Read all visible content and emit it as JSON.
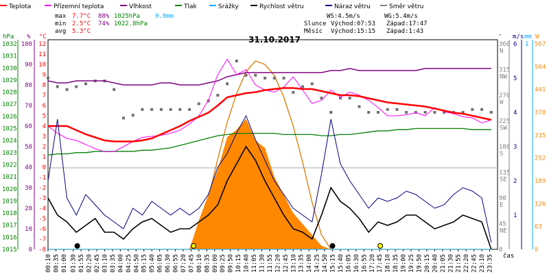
{
  "legend": [
    {
      "label": "Teplota",
      "color": "#ff0000"
    },
    {
      "label": "Přízemní teplota",
      "color": "#ff00ff"
    },
    {
      "label": "Vlhkost",
      "color": "#800080"
    },
    {
      "label": "Tlak",
      "color": "#008000"
    },
    {
      "label": "Srážky",
      "color": "#00aaff"
    },
    {
      "label": "Rychlost větru",
      "color": "#000000"
    },
    {
      "label": "Náraz větru",
      "color": "#000080"
    },
    {
      "label": "Směr větru",
      "color": "#808080"
    }
  ],
  "stats": {
    "max_label": "max",
    "min_label": "min",
    "avg_label": "avg",
    "max_temp": "7.7°C",
    "max_hum": "88%",
    "max_press": "1025hPa",
    "max_rain": "0.0mm",
    "min_temp": "2.5°C",
    "min_hum": "74%",
    "min_press": "1022.8hPa",
    "avg_temp": "5.3°C"
  },
  "wind_info": {
    "ws": "WS:4.5m/s",
    "wg": "WG:5.4m/s",
    "sun_label": "Slunce",
    "sun_rise": "Východ:07:53",
    "sun_set": "Západ:17:47",
    "moon_label": "Měsíc",
    "moon_rise": "Východ:15:15",
    "moon_set": "Západ:1:43"
  },
  "chart_data": {
    "type": "line",
    "title": "31.10.2017",
    "xlabel": "čas",
    "x": [
      "00:10",
      "00:40",
      "01:10",
      "01:40",
      "02:10",
      "02:40",
      "03:10",
      "03:40",
      "04:10",
      "04:40",
      "05:10",
      "05:40",
      "06:10",
      "06:40",
      "07:10",
      "07:40",
      "08:10",
      "08:40",
      "09:10",
      "09:40",
      "10:10",
      "10:40",
      "11:10",
      "11:40",
      "12:10",
      "12:40",
      "13:10",
      "13:40",
      "14:10",
      "14:40",
      "15:10",
      "15:40",
      "16:10",
      "16:40",
      "17:10",
      "17:40",
      "18:10",
      "18:40",
      "19:10",
      "19:40",
      "20:10",
      "20:40",
      "21:10",
      "21:40",
      "22:10",
      "22:40",
      "23:10",
      "23:40"
    ],
    "x_ticks": [
      "00:10",
      "00:35",
      "01:00",
      "01:30",
      "01:55",
      "02:20",
      "02:45",
      "03:10",
      "03:35",
      "04:00",
      "04:25",
      "04:50",
      "05:15",
      "05:40",
      "06:05",
      "06:30",
      "06:55",
      "07:20",
      "07:45",
      "08:10",
      "08:35",
      "09:00",
      "09:25",
      "09:50",
      "10:15",
      "10:40",
      "11:05",
      "11:30",
      "11:55",
      "12:20",
      "12:45",
      "13:10",
      "13:35",
      "14:00",
      "14:25",
      "14:50",
      "15:15",
      "15:40",
      "16:05",
      "16:30",
      "16:55",
      "17:20",
      "17:45",
      "18:10",
      "18:35",
      "19:00",
      "19:25",
      "19:50",
      "20:15",
      "20:40",
      "21:05",
      "21:30",
      "21:55",
      "22:20",
      "22:45",
      "23:10",
      "23:35"
    ],
    "axes": {
      "hpa": {
        "label": "hPa",
        "ticks": [
          "1032",
          "1031",
          "1030",
          "1029",
          "1028",
          "1027",
          "1026",
          "1025",
          "1024",
          "1023",
          "1022",
          "1021",
          "1020",
          "1019",
          "1018",
          "1017",
          "1016",
          "1015"
        ]
      },
      "pct": {
        "label": "%",
        "ticks": [
          "100",
          "90",
          "80",
          "70",
          "60",
          "50",
          "40",
          "30",
          "20",
          "10",
          "0"
        ]
      },
      "temp_top": {
        "label": "°C",
        "ticks": [
          "12",
          "11",
          "10",
          "9",
          "8",
          "7",
          "6",
          "5",
          "4",
          "3",
          "2",
          "1",
          "0"
        ]
      },
      "temp_bottom": {
        "ticks": [
          "-1",
          "-2",
          "-3",
          "-4",
          "-5",
          "-6",
          "-7",
          "-8"
        ]
      },
      "deg": {
        "label": "°",
        "ticks": [
          "360",
          "315",
          "270",
          "225",
          "180",
          "135",
          "90",
          "45",
          "0"
        ],
        "dirs": [
          "N",
          "NW",
          "W",
          "SW",
          "S",
          "SE",
          "E",
          "NE",
          ""
        ]
      },
      "ms": {
        "label": "m/s",
        "ticks": [
          "6",
          "5",
          "4",
          "3",
          "2",
          "1"
        ]
      },
      "mm": {
        "label": "mm",
        "ticks": [
          "1"
        ]
      },
      "w": {
        "label": "W",
        "ticks": [
          "567",
          "504",
          "441",
          "378",
          "315",
          "252",
          "189",
          "126",
          "63",
          "0"
        ]
      }
    },
    "series": [
      {
        "name": "Teplota",
        "unit": "°C",
        "values": [
          4.0,
          4.0,
          4.0,
          3.6,
          3.2,
          2.9,
          2.6,
          2.5,
          2.5,
          2.5,
          2.6,
          2.8,
          3.2,
          3.6,
          4.0,
          4.5,
          4.9,
          5.3,
          6.0,
          6.8,
          7.0,
          7.2,
          7.3,
          7.5,
          7.6,
          7.7,
          7.7,
          7.6,
          7.6,
          7.4,
          7.2,
          7.0,
          7.0,
          6.9,
          6.7,
          6.5,
          6.3,
          6.2,
          6.1,
          6.0,
          5.9,
          5.7,
          5.5,
          5.3,
          5.2,
          5.0,
          4.8,
          4.6
        ]
      },
      {
        "name": "Přízemní teplota",
        "unit": "°C",
        "values": [
          4.0,
          3.3,
          2.8,
          2.6,
          2.2,
          1.8,
          1.5,
          1.5,
          2.0,
          2.5,
          2.9,
          3.0,
          3.1,
          3.3,
          3.6,
          4.2,
          5.0,
          6.5,
          9.0,
          10.5,
          9.0,
          9.5,
          8.0,
          7.5,
          7.3,
          7.8,
          8.8,
          7.5,
          6.2,
          6.5,
          7.5,
          6.8,
          7.3,
          7.0,
          6.5,
          5.8,
          5.0,
          5.0,
          5.1,
          5.3,
          5.0,
          5.8,
          5.4,
          5.2,
          4.9,
          4.8,
          4.3,
          4.6
        ]
      },
      {
        "name": "Vlhkost",
        "unit": "%",
        "values": [
          82,
          81,
          81,
          82,
          82,
          82,
          82,
          81,
          80,
          80,
          80,
          80,
          81,
          81,
          80,
          80,
          80,
          81,
          82,
          84,
          85,
          86,
          86,
          86,
          86,
          86,
          86,
          86,
          86,
          86,
          87,
          87,
          88,
          87,
          87,
          87,
          87,
          87,
          87,
          87,
          88,
          88,
          88,
          88,
          88,
          88,
          88,
          88
        ]
      },
      {
        "name": "Tlak",
        "unit": "hPa",
        "values": [
          1022.8,
          1022.9,
          1022.9,
          1023.0,
          1023.0,
          1023.1,
          1023.1,
          1023.1,
          1023.1,
          1023.1,
          1023.2,
          1023.2,
          1023.3,
          1023.4,
          1023.6,
          1023.8,
          1024.0,
          1024.2,
          1024.4,
          1024.5,
          1024.6,
          1024.6,
          1024.6,
          1024.6,
          1024.6,
          1024.5,
          1024.5,
          1024.5,
          1024.5,
          1024.4,
          1024.4,
          1024.5,
          1024.5,
          1024.6,
          1024.7,
          1024.8,
          1024.8,
          1024.9,
          1024.9,
          1025.0,
          1025.0,
          1025.0,
          1025.0,
          1025.0,
          1025.0,
          1024.9,
          1024.9,
          1024.9
        ]
      },
      {
        "name": "Rychlost větru",
        "unit": "m/s",
        "values": [
          1.5,
          1.0,
          0.8,
          0.5,
          0.7,
          0.9,
          0.5,
          0.5,
          0.3,
          0.6,
          0.8,
          0.9,
          0.7,
          0.5,
          0.6,
          0.6,
          0.8,
          1.0,
          1.3,
          2.0,
          2.5,
          3.0,
          2.6,
          2.0,
          1.5,
          1.0,
          0.6,
          0.5,
          0.3,
          1.0,
          1.8,
          1.4,
          1.2,
          0.9,
          0.5,
          0.8,
          0.7,
          0.8,
          1.0,
          1.0,
          0.8,
          0.6,
          0.7,
          0.8,
          1.0,
          0.9,
          0.8,
          0.0
        ]
      },
      {
        "name": "Náraz větru",
        "unit": "m/s",
        "values": [
          2.0,
          3.8,
          1.5,
          1.0,
          1.6,
          1.3,
          1.0,
          0.8,
          0.6,
          1.2,
          1.0,
          1.4,
          1.2,
          1.0,
          1.2,
          1.0,
          1.2,
          1.6,
          2.4,
          2.8,
          3.4,
          3.9,
          3.2,
          2.6,
          2.0,
          1.6,
          1.2,
          1.0,
          0.8,
          2.2,
          3.8,
          2.5,
          2.0,
          1.6,
          1.2,
          1.5,
          1.4,
          1.5,
          1.7,
          1.6,
          1.4,
          1.2,
          1.3,
          1.6,
          1.8,
          1.7,
          1.5,
          0.2
        ]
      },
      {
        "name": "Srážky",
        "unit": "mm",
        "values": [
          0,
          0,
          0,
          0,
          0,
          0,
          0,
          0,
          0,
          0,
          0,
          0,
          0,
          0,
          0,
          0,
          0,
          0,
          0,
          0,
          0,
          0,
          0,
          0,
          0,
          0,
          0,
          0,
          0,
          0,
          0,
          0,
          0,
          0,
          0,
          0,
          0,
          0,
          0,
          0,
          0,
          0,
          0,
          0,
          0,
          0,
          0,
          0
        ]
      },
      {
        "name": "Směr větru",
        "unit": "°",
        "values": [
          300,
          285,
          280,
          285,
          290,
          295,
          295,
          280,
          230,
          235,
          245,
          245,
          245,
          245,
          245,
          245,
          255,
          260,
          270,
          290,
          330,
          305,
          305,
          300,
          300,
          300,
          275,
          285,
          290,
          265,
          240,
          265,
          265,
          250,
          240,
          240,
          245,
          245,
          240,
          240,
          240,
          240,
          240,
          240,
          240,
          245,
          245,
          240
        ]
      },
      {
        "name": "Slunce",
        "unit": "W",
        "values": [
          0,
          0,
          0,
          0,
          0,
          0,
          0,
          0,
          0,
          0,
          0,
          0,
          0,
          0,
          0,
          0,
          80,
          150,
          220,
          310,
          330,
          360,
          300,
          280,
          200,
          150,
          100,
          70,
          40,
          10,
          0,
          0,
          0,
          0,
          0,
          0,
          0,
          0,
          0,
          0,
          0,
          0,
          0,
          0,
          0,
          0,
          0,
          0
        ]
      },
      {
        "name": "Slunce max",
        "unit": "W",
        "values": [
          0,
          0,
          0,
          0,
          0,
          0,
          0,
          0,
          0,
          0,
          0,
          0,
          0,
          0,
          0,
          0,
          30,
          140,
          250,
          350,
          430,
          490,
          520,
          510,
          480,
          420,
          340,
          240,
          130,
          40,
          0,
          0,
          0,
          0,
          0,
          0,
          0,
          0,
          0,
          0,
          0,
          0,
          0,
          0,
          0,
          0,
          0,
          0
        ]
      }
    ],
    "markers": [
      {
        "label": "moon-set",
        "time": "01:43",
        "color": "#000000"
      },
      {
        "label": "sun-rise",
        "time": "07:53",
        "color": "#ffff00"
      },
      {
        "label": "moon-rise",
        "time": "15:15",
        "color": "#000000"
      },
      {
        "label": "sun-set",
        "time": "17:47",
        "color": "#ffff00"
      }
    ]
  }
}
